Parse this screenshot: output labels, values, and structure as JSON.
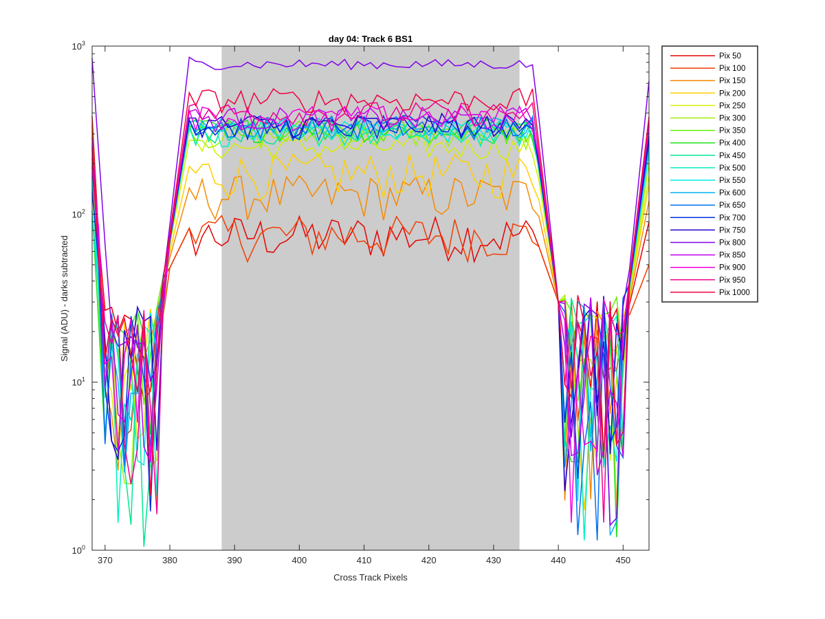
{
  "chart_data": {
    "type": "line",
    "title": "day 04: Track 6  BS1",
    "xlabel": "Cross Track Pixels",
    "ylabel": "Signal (ADU) - darks subtracted",
    "xlim": [
      368,
      454
    ],
    "ylim": [
      1,
      1000
    ],
    "yscale": "log",
    "x_ticks": [
      370,
      380,
      390,
      400,
      410,
      420,
      430,
      440,
      450
    ],
    "y_ticks": [
      1,
      10,
      100,
      1000
    ],
    "y_tick_labels": [
      {
        "base": "10",
        "exp": "0"
      },
      {
        "base": "10",
        "exp": "1"
      },
      {
        "base": "10",
        "exp": "2"
      },
      {
        "base": "10",
        "exp": "3"
      }
    ],
    "shaded_region": {
      "x_start": 388,
      "x_end": 434,
      "color": "#cccccc"
    },
    "legend_location": "outside-top-right",
    "legend_title": "",
    "series_note": "approximate values read from chart; x from 368 to 454 step 1",
    "series": [
      {
        "name": "Pix 50",
        "color": "#e60000",
        "level": 75,
        "left_edge": 350,
        "right_edge": 90
      },
      {
        "name": "Pix 100",
        "color": "#f03c00",
        "level": 75,
        "left_edge": 260,
        "right_edge": 50
      },
      {
        "name": "Pix 150",
        "color": "#f58a00",
        "level": 130,
        "left_edge": 220,
        "right_edge": 120
      },
      {
        "name": "Pix 200",
        "color": "#ffd000",
        "level": 175,
        "left_edge": 200,
        "right_edge": 150
      },
      {
        "name": "Pix 250",
        "color": "#d4f000",
        "level": 250,
        "left_edge": 180,
        "right_edge": 170
      },
      {
        "name": "Pix 300",
        "color": "#a0f000",
        "level": 290,
        "left_edge": 160,
        "right_edge": 200
      },
      {
        "name": "Pix 350",
        "color": "#60f000",
        "level": 310,
        "left_edge": 150,
        "right_edge": 250
      },
      {
        "name": "Pix 400",
        "color": "#20e020",
        "level": 320,
        "left_edge": 140,
        "right_edge": 300
      },
      {
        "name": "Pix 450",
        "color": "#00e890",
        "level": 310,
        "left_edge": 130,
        "right_edge": 260
      },
      {
        "name": "Pix 500",
        "color": "#00f0c0",
        "level": 300,
        "left_edge": 120,
        "right_edge": 240
      },
      {
        "name": "Pix 550",
        "color": "#00e8e8",
        "level": 320,
        "left_edge": 150,
        "right_edge": 230
      },
      {
        "name": "Pix 600",
        "color": "#00b0f0",
        "level": 330,
        "left_edge": 170,
        "right_edge": 260
      },
      {
        "name": "Pix 650",
        "color": "#0070f0",
        "level": 330,
        "left_edge": 180,
        "right_edge": 270
      },
      {
        "name": "Pix 700",
        "color": "#0030e0",
        "level": 330,
        "left_edge": 190,
        "right_edge": 280
      },
      {
        "name": "Pix 750",
        "color": "#2000d0",
        "level": 340,
        "left_edge": 200,
        "right_edge": 290
      },
      {
        "name": "Pix 800",
        "color": "#8000e8",
        "level": 780,
        "left_edge": 680,
        "right_edge": 620
      },
      {
        "name": "Pix 850",
        "color": "#c000f0",
        "level": 370,
        "left_edge": 300,
        "right_edge": 330
      },
      {
        "name": "Pix 900",
        "color": "#f000e0",
        "level": 380,
        "left_edge": 260,
        "right_edge": 340
      },
      {
        "name": "Pix 950",
        "color": "#f00090",
        "level": 400,
        "left_edge": 280,
        "right_edge": 360
      },
      {
        "name": "Pix 1000",
        "color": "#f00040",
        "level": 480,
        "left_edge": 300,
        "right_edge": 380
      }
    ]
  }
}
